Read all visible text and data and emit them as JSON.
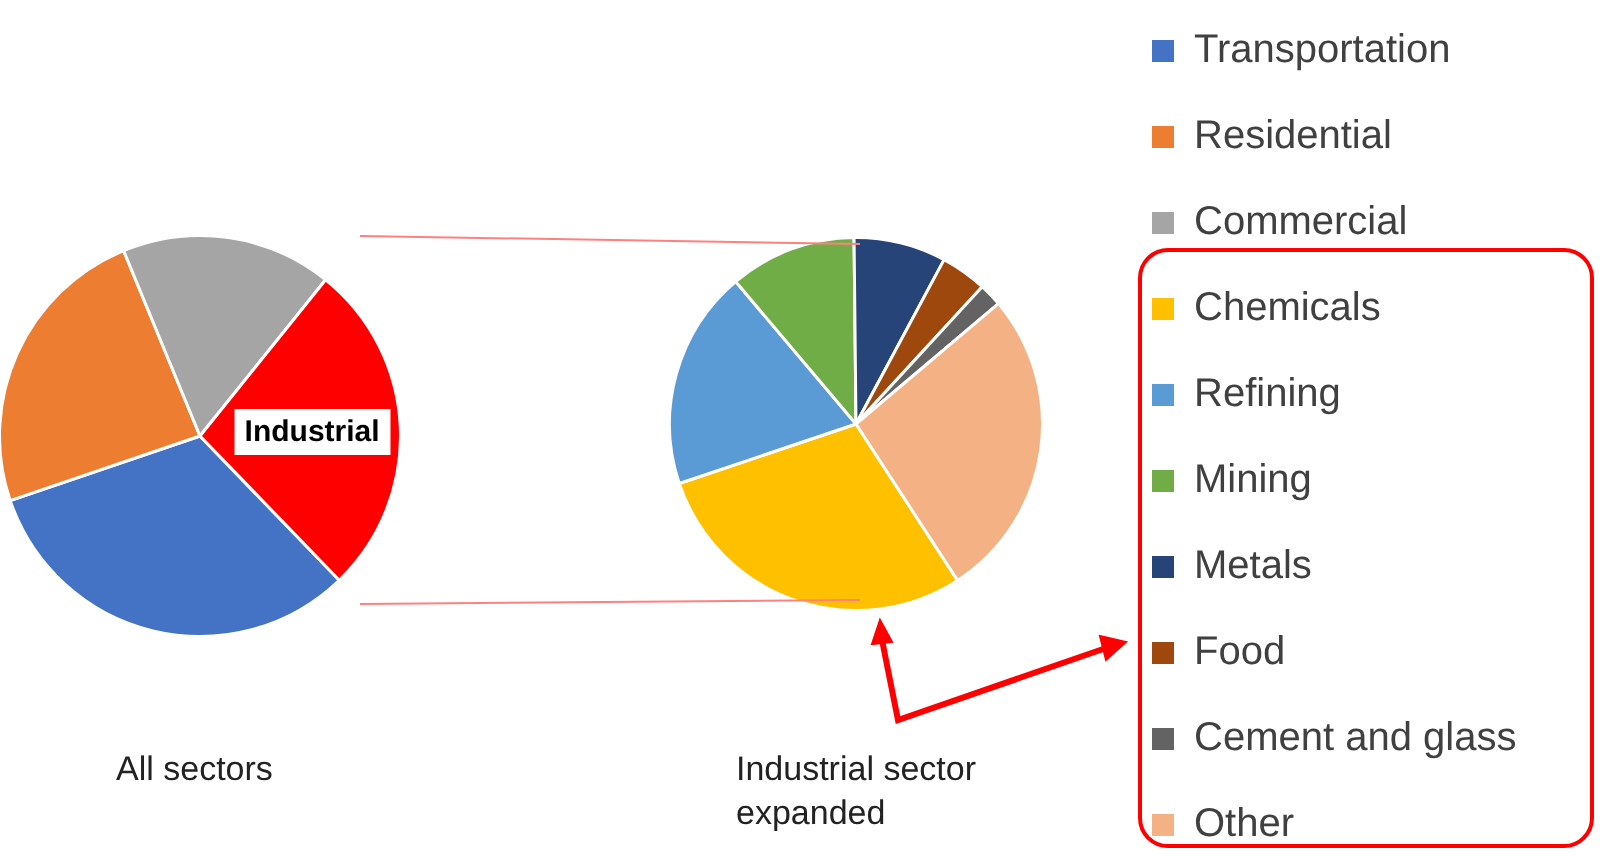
{
  "chart_data": [
    {
      "type": "pie",
      "title": "All sectors",
      "categories": [
        "Transportation",
        "Residential",
        "Commercial",
        null
      ],
      "values": [
        32,
        24,
        17,
        27
      ],
      "colors": [
        "#4472c4",
        "#ed7d31",
        "#a5a5a5",
        "#ff0000"
      ],
      "legend": "right",
      "annotations": [
        "Industrial"
      ]
    },
    {
      "type": "pie",
      "title": "Industrial sector expanded",
      "categories": [
        "Chemicals",
        "Refining",
        "Mining",
        "Metals",
        "Food",
        "Cement and glass",
        "Other"
      ],
      "values": [
        29,
        19,
        11,
        8,
        4,
        2,
        27
      ],
      "colors": [
        "#ffc000",
        "#5b9bd5",
        "#70ad47",
        "#264478",
        "#9e480e",
        "#636363",
        "#f4b183"
      ],
      "legend": "right"
    }
  ]
}
